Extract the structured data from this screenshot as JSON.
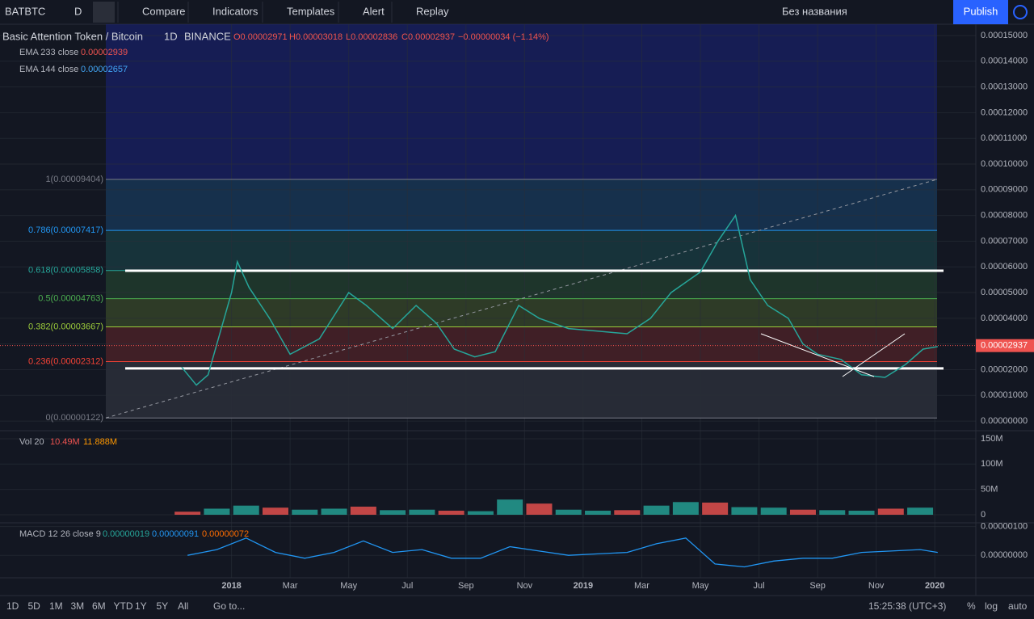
{
  "toolbar": {
    "symbol": "BATBTC",
    "interval": "D",
    "items": [
      "Compare",
      "Indicators",
      "Templates",
      "Alert",
      "Replay"
    ],
    "layout_name": "Без названия",
    "publish": "Publish"
  },
  "legend": {
    "title": "Basic Attention Token / Bitcoin",
    "interval": "1D",
    "exchange": "BINANCE",
    "open": "O0.00002971",
    "high": "H0.00003018",
    "low": "L0.00002836",
    "close": "C0.00002937",
    "change": "−0.00000034 (−1.14%)",
    "ema1": {
      "name": "EMA 233 close",
      "value": "0.00002939"
    },
    "ema2": {
      "name": "EMA 144 close",
      "value": "0.00002657"
    }
  },
  "price_pane": {
    "ylim": [
      -2.8e-06,
      0.0001544
    ],
    "xlim": [
      -7.9,
      25.4
    ],
    "yticks": [
      {
        "value": 0,
        "label": "0.00000000"
      },
      {
        "value": 1e-05,
        "label": "0.00001000"
      },
      {
        "value": 2e-05,
        "label": "0.00002000"
      },
      {
        "value": 3e-05,
        "label": "0.00003000"
      },
      {
        "value": 4e-05,
        "label": "0.00004000"
      },
      {
        "value": 5e-05,
        "label": "0.00005000"
      },
      {
        "value": 6e-05,
        "label": "0.00006000"
      },
      {
        "value": 7e-05,
        "label": "0.00007000"
      },
      {
        "value": 8e-05,
        "label": "0.00008000"
      },
      {
        "value": 9e-05,
        "label": "0.00009000"
      },
      {
        "value": 0.0001,
        "label": "0.00010000"
      },
      {
        "value": 0.00011,
        "label": "0.00011000"
      },
      {
        "value": 0.00012,
        "label": "0.00012000"
      },
      {
        "value": 0.00013,
        "label": "0.00013000"
      },
      {
        "value": 0.00014,
        "label": "0.00014000"
      },
      {
        "value": 0.00015,
        "label": "0.00015000"
      }
    ],
    "xticks": [
      {
        "value": 0,
        "label": "2018"
      },
      {
        "value": 2,
        "label": "Mar"
      },
      {
        "value": 4,
        "label": "May"
      },
      {
        "value": 6,
        "label": "Jul"
      },
      {
        "value": 8,
        "label": "Sep"
      },
      {
        "value": 10,
        "label": "Nov"
      },
      {
        "value": 12,
        "label": "2019"
      },
      {
        "value": 14,
        "label": "Mar"
      },
      {
        "value": 16,
        "label": "May"
      },
      {
        "value": 18,
        "label": "Jul"
      },
      {
        "value": 20,
        "label": "Sep"
      },
      {
        "value": 22,
        "label": "Nov"
      },
      {
        "value": 24,
        "label": "2020"
      }
    ],
    "fib_levels": [
      {
        "value": 9.404e-05,
        "label": "1(0.00009404)",
        "color": "#787b86"
      },
      {
        "value": 7.417e-05,
        "label": "0.786(0.00007417)",
        "color": "#2196f3"
      },
      {
        "value": 5.858e-05,
        "label": "0.618(0.00005858)",
        "color": "#26a69a"
      },
      {
        "value": 4.763e-05,
        "label": "0.5(0.00004763)",
        "color": "#4caf50"
      },
      {
        "value": 3.667e-05,
        "label": "0.382(0.00003667)",
        "color": "#9ccc3a"
      },
      {
        "value": 2.312e-05,
        "label": "0.236(0.00002312)",
        "color": "#f44336"
      },
      {
        "value": 1.22e-06,
        "label": "0(0.00000122)",
        "color": "#787b86"
      }
    ],
    "horizontal_lines": [
      5.85e-05,
      2.05e-05
    ],
    "price": {
      "color": "#26a69a",
      "x": [
        -1.7,
        -1.2,
        -0.8,
        0,
        0.2,
        0.6,
        1.3,
        2,
        3,
        4,
        4.6,
        5.5,
        6.3,
        7,
        7.6,
        8.3,
        9,
        9.8,
        10.5,
        11.5,
        12.5,
        13.5,
        14.3,
        15,
        16,
        16.6,
        17.2,
        17.7,
        18.3,
        19,
        19.5,
        20,
        20.8,
        21.5,
        22.3,
        23,
        23.6,
        24.1
      ],
      "values": [
        2.1e-05,
        1.4e-05,
        1.8e-05,
        5e-05,
        6.2e-05,
        5.2e-05,
        4e-05,
        2.6e-05,
        3.2e-05,
        5e-05,
        4.5e-05,
        3.6e-05,
        4.5e-05,
        3.8e-05,
        2.8e-05,
        2.5e-05,
        2.7e-05,
        4.5e-05,
        4e-05,
        3.6e-05,
        3.5e-05,
        3.4e-05,
        4e-05,
        5e-05,
        5.8e-05,
        7e-05,
        8e-05,
        5.5e-05,
        4.5e-05,
        4e-05,
        3e-05,
        2.6e-05,
        2.4e-05,
        1.8e-05,
        1.7e-05,
        2.2e-05,
        2.8e-05,
        2.9e-05
      ]
    },
    "last_price": 2.937e-05
  },
  "volume_pane": {
    "name": "Vol 20",
    "value1": "10.49M",
    "value2": "11.888M",
    "ylim": [
      -12.8,
      157.9
    ],
    "yticks": [
      {
        "value": 150,
        "label": "150M"
      },
      {
        "value": 100,
        "label": "100M"
      },
      {
        "value": 50,
        "label": "50M"
      },
      0
    ],
    "x": [
      -1.5,
      -0.5,
      0.5,
      1.5,
      2.5,
      3.5,
      4.5,
      5.5,
      6.5,
      7.5,
      8.5,
      9.5,
      10.5,
      11.5,
      12.5,
      13.5,
      14.5,
      15.5,
      16.5,
      17.5,
      18.5,
      19.5,
      20.5,
      21.5,
      22.5,
      23.5
    ],
    "values": [
      6,
      12,
      18,
      14,
      10,
      12,
      16,
      9,
      10,
      8,
      7,
      30,
      22,
      10,
      8,
      9,
      18,
      25,
      24,
      15,
      14,
      10,
      9,
      8,
      12,
      14
    ]
  },
  "macd_pane": {
    "name": "MACD 12 26 close 9",
    "value1": "0.00000019",
    "value2": "0.00000091",
    "value3": "0.00000072",
    "ylim": [
      -7.8e-07,
      1.1e-06
    ],
    "yticks": [
      {
        "value": 1e-06,
        "label": "0.00000100"
      },
      {
        "value": 0,
        "label": "0.00000000"
      }
    ],
    "x": [
      -1.5,
      -0.5,
      0.5,
      1.5,
      2.5,
      3.5,
      4.5,
      5.5,
      6.5,
      7.5,
      8.5,
      9.5,
      10.5,
      11.5,
      12.5,
      13.5,
      14.5,
      15.5,
      16.5,
      17.5,
      18.5,
      19.5,
      20.5,
      21.5,
      22.5,
      23.5,
      24.1
    ],
    "values": [
      0,
      2e-07,
      6e-07,
      1e-07,
      -1e-07,
      1e-07,
      5e-07,
      1e-07,
      2e-07,
      -1e-07,
      -1e-07,
      3e-07,
      1.5e-07,
      0,
      5e-08,
      1e-07,
      4e-07,
      6e-07,
      -3e-07,
      -4e-07,
      -2e-07,
      -1e-07,
      -1e-07,
      1e-07,
      1.5e-07,
      2e-07,
      1e-07
    ]
  },
  "bottom_bar": {
    "ranges": [
      "1D",
      "5D",
      "1M",
      "3M",
      "6M",
      "YTD",
      "1Y",
      "5Y",
      "All"
    ],
    "goto": "Go to...",
    "time": "15:25:38 (UTC+3)",
    "percent": "%",
    "log": "log",
    "auto": "auto"
  }
}
